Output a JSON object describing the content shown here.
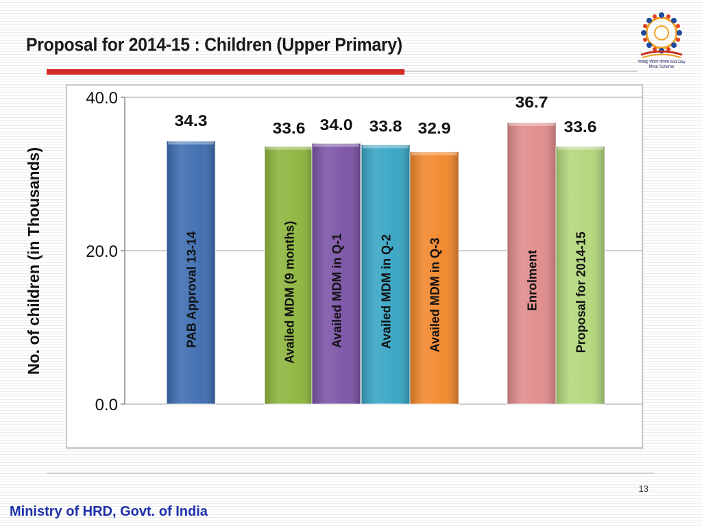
{
  "slide": {
    "title": "Proposal for 2014-15 : Children (Upper Primary)",
    "page_number": "13",
    "footer_org": "Ministry of HRD, Govt. of India",
    "logo_icon": "mid-day-meal-scheme-logo",
    "logo_caption": "मध्याह्न भोजन योजना Mid Day Meal Scheme"
  },
  "chart_data": {
    "type": "bar",
    "ylabel": "No. of children (in Thousands)",
    "xlabel": "",
    "ylim": [
      0,
      40
    ],
    "yticks": [
      0,
      20,
      40
    ],
    "ytick_labels": [
      "0.0",
      "20.0",
      "40.0"
    ],
    "grid": true,
    "legend": "none",
    "categories": [
      "PAB Approval 13-14",
      "Availed MDM (9 months)",
      "Availed MDM in Q-1",
      "Availed MDM in Q-2",
      "Availed MDM in Q-3",
      "Enrolment",
      "Proposal for 2014-15"
    ],
    "values": [
      34.3,
      33.6,
      34.0,
      33.8,
      32.9,
      36.7,
      33.6
    ],
    "value_labels": [
      "34.3",
      "33.6",
      "34.0",
      "33.8",
      "32.9",
      "36.7",
      "33.6"
    ],
    "colors": [
      "#3c6cb0",
      "#8cb43c",
      "#7a52a6",
      "#36a4c4",
      "#f2862a",
      "#e08a8a",
      "#b2d67a"
    ]
  }
}
